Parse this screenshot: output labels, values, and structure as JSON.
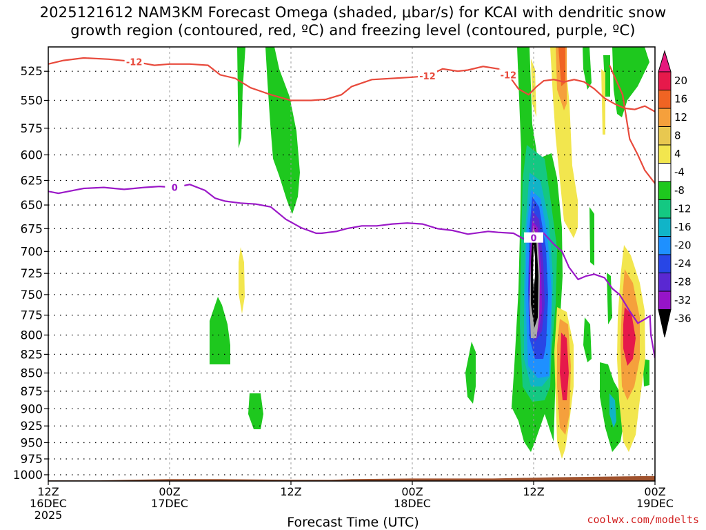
{
  "title": {
    "line1": "2025121612 NAM3KM Forecast Omega (shaded, μbar/s) for KCAI with dendritic snow",
    "line2": "growth region (contoured, red, ºC) and freezing level (contoured, purple, ºC)"
  },
  "credit": "coolwx.com/modelts",
  "chart_data": {
    "type": "heatmap",
    "xlabel": "Forecast Time (UTC)",
    "ylabel": "",
    "x_range_hours": [
      0,
      60
    ],
    "y_range_hPa": [
      505,
      1010
    ],
    "y_scale": "log-pressure (inverted)",
    "grid": true,
    "y_ticks": [
      525,
      550,
      575,
      600,
      625,
      650,
      675,
      700,
      725,
      750,
      775,
      800,
      825,
      850,
      875,
      900,
      925,
      950,
      975,
      1000
    ],
    "x_ticks": [
      {
        "hour": 0,
        "line1": "12Z",
        "line2": "16DEC",
        "line3": "2025"
      },
      {
        "hour": 12,
        "line1": "00Z",
        "line2": "17DEC",
        "line3": ""
      },
      {
        "hour": 24,
        "line1": "12Z",
        "line2": "",
        "line3": ""
      },
      {
        "hour": 36,
        "line1": "00Z",
        "line2": "18DEC",
        "line3": ""
      },
      {
        "hour": 48,
        "line1": "12Z",
        "line2": "",
        "line3": ""
      },
      {
        "hour": 60,
        "line1": "00Z",
        "line2": "19DEC",
        "line3": ""
      }
    ],
    "colorbar": {
      "levels": [
        20,
        16,
        12,
        8,
        4,
        -4,
        -8,
        -12,
        -16,
        -20,
        -24,
        -28,
        -32,
        -36
      ],
      "colors": [
        "#e6194b",
        "#f06423",
        "#f5a03c",
        "#e8c850",
        "#f2e64e",
        "#ffffff",
        "#1ec81e",
        "#14c882",
        "#10b4c8",
        "#1e90ff",
        "#2846e6",
        "#5a28d2",
        "#9614c8",
        "#aaaaaa",
        "#000000"
      ],
      "top_arrow_color": "#e6197d",
      "bottom_arrow_color": "#000000"
    },
    "contours": [
      {
        "label": "-12",
        "color": "#e84a3c",
        "points": [
          [
            0,
            519
          ],
          [
            1.5,
            516
          ],
          [
            3.5,
            514
          ],
          [
            6,
            515
          ],
          [
            8.5,
            517
          ],
          [
            10.5,
            520
          ],
          [
            12,
            519
          ],
          [
            14,
            519
          ],
          [
            15.8,
            520
          ],
          [
            17,
            528
          ],
          [
            18.5,
            531
          ],
          [
            20,
            539
          ],
          [
            22,
            545
          ],
          [
            24,
            550
          ],
          [
            26,
            550
          ],
          [
            27.5,
            549
          ],
          [
            29,
            545
          ],
          [
            30,
            538
          ],
          [
            32,
            532
          ],
          [
            34,
            531
          ],
          [
            36,
            530
          ],
          [
            37.5,
            529
          ],
          [
            39,
            523
          ],
          [
            40.5,
            525
          ],
          [
            41.5,
            524
          ],
          [
            43,
            521
          ],
          [
            44.5,
            523
          ],
          [
            45.5,
            528
          ],
          [
            46.5,
            540
          ],
          [
            47.5,
            545
          ],
          [
            48.3,
            538
          ],
          [
            49,
            533
          ],
          [
            50,
            532
          ],
          [
            51,
            534
          ],
          [
            52,
            532
          ],
          [
            53,
            534
          ],
          [
            54,
            540
          ],
          [
            55,
            548
          ],
          [
            56,
            553
          ],
          [
            57,
            557
          ],
          [
            58,
            558
          ],
          [
            59,
            555
          ],
          [
            60,
            560
          ]
        ]
      },
      {
        "label": "-12",
        "color": "#e84a3c",
        "points": [
          [
            55.5,
            520
          ],
          [
            56.8,
            545
          ],
          [
            57.5,
            585
          ],
          [
            58.3,
            600
          ],
          [
            59,
            615
          ],
          [
            60,
            628
          ]
        ]
      },
      {
        "label": "0",
        "color": "#9b19c8",
        "points": [
          [
            0,
            636
          ],
          [
            1,
            638
          ],
          [
            2,
            636
          ],
          [
            3.5,
            633
          ],
          [
            5.5,
            632
          ],
          [
            7.5,
            634
          ],
          [
            9.5,
            632
          ],
          [
            11,
            631
          ],
          [
            12.5,
            632
          ],
          [
            14,
            629
          ],
          [
            15.5,
            635
          ],
          [
            16.5,
            643
          ],
          [
            17.5,
            646
          ],
          [
            19,
            648
          ],
          [
            20.5,
            649
          ],
          [
            22,
            652
          ],
          [
            23.5,
            665
          ],
          [
            25,
            674
          ],
          [
            26.5,
            680
          ],
          [
            27,
            680
          ],
          [
            28.5,
            678
          ],
          [
            29.5,
            675
          ],
          [
            31,
            672
          ],
          [
            32.5,
            672
          ],
          [
            34,
            670
          ],
          [
            35.5,
            669
          ],
          [
            37,
            670
          ],
          [
            38.5,
            675
          ],
          [
            40,
            677
          ],
          [
            41.5,
            681
          ],
          [
            43.5,
            678
          ],
          [
            44.5,
            679
          ],
          [
            46,
            680
          ],
          [
            47,
            686
          ],
          [
            48,
            685
          ],
          [
            49,
            680
          ],
          [
            50,
            692
          ],
          [
            50.8,
            700
          ],
          [
            51.5,
            718
          ],
          [
            52.4,
            732
          ],
          [
            53.2,
            728
          ],
          [
            54,
            726
          ],
          [
            55,
            730
          ],
          [
            55.8,
            743
          ],
          [
            56.5,
            750
          ],
          [
            57.5,
            770
          ],
          [
            58.3,
            785
          ],
          [
            59,
            780
          ],
          [
            59.5,
            776
          ],
          [
            59.6,
            800
          ],
          [
            60,
            830
          ]
        ]
      }
    ],
    "terrain_color": "#a0522d",
    "terrain_hPa": [
      [
        0,
        1009
      ],
      [
        5,
        1009
      ],
      [
        8,
        1008
      ],
      [
        12,
        1007
      ],
      [
        17,
        1007
      ],
      [
        24,
        1008
      ],
      [
        28,
        1008
      ],
      [
        30,
        1007
      ],
      [
        36,
        1006
      ],
      [
        44,
        1006
      ],
      [
        50,
        1004
      ],
      [
        60,
        1002
      ]
    ]
  }
}
